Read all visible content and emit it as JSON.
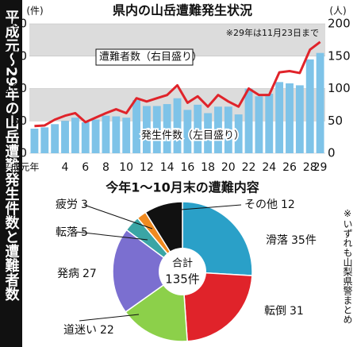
{
  "vertical_title": "平成元～29年の山岳遭難発生件数と遭難者数",
  "source_note": "※いずれも山梨県警まとめ",
  "chart_data": [
    {
      "type": "bar-line",
      "title": "県内の山岳遭難発生状況",
      "note": "※29年は11月23日まで",
      "y_unit": "(件)",
      "y2_unit": "(人)",
      "categories": [
        "平成元年",
        null,
        null,
        "4",
        null,
        "6",
        null,
        "8",
        null,
        "10",
        null,
        "12",
        null,
        "14",
        null,
        "16",
        null,
        "18",
        null,
        "20",
        null,
        "22",
        null,
        "24",
        null,
        "26",
        null,
        "28",
        "29"
      ],
      "series": [
        {
          "name": "発生件数（左目盛り）",
          "type": "bar",
          "color": "#7ec3e8",
          "values": [
            38,
            40,
            45,
            50,
            55,
            48,
            52,
            58,
            57,
            55,
            82,
            73,
            73,
            76,
            85,
            67,
            75,
            62,
            72,
            72,
            60,
            100,
            88,
            92,
            110,
            108,
            105,
            145,
            155
          ]
        },
        {
          "name": "遭難者数（右目盛り）",
          "type": "line",
          "axis": "y2",
          "color": "#e0232a",
          "values": [
            42,
            43,
            52,
            58,
            62,
            48,
            55,
            62,
            68,
            62,
            85,
            80,
            85,
            90,
            105,
            78,
            88,
            72,
            90,
            80,
            72,
            100,
            90,
            90,
            125,
            127,
            124,
            160,
            172
          ]
        }
      ],
      "ylim": [
        0,
        200
      ],
      "yticks": [
        0,
        50,
        100,
        150,
        200
      ],
      "y2lim": [
        0,
        200
      ],
      "y2ticks": [
        0,
        50,
        100,
        150,
        200
      ],
      "grid": true
    },
    {
      "type": "pie",
      "title": "今年1～10月末の遭難内容",
      "center_label": "合計",
      "center_value": "135件",
      "categories": [
        "滑落",
        "転倒",
        "道迷い",
        "発病",
        "転落",
        "疲労",
        "その他"
      ],
      "values": [
        35,
        31,
        22,
        27,
        5,
        3,
        12
      ],
      "value_labels": [
        "35件",
        "31",
        "22",
        "27",
        "5",
        "3",
        "12"
      ],
      "colors": [
        "#2aa0c8",
        "#e0232a",
        "#8cd04a",
        "#7b6fd0",
        "#3aa5a5",
        "#f08a20",
        "#111111"
      ]
    }
  ]
}
